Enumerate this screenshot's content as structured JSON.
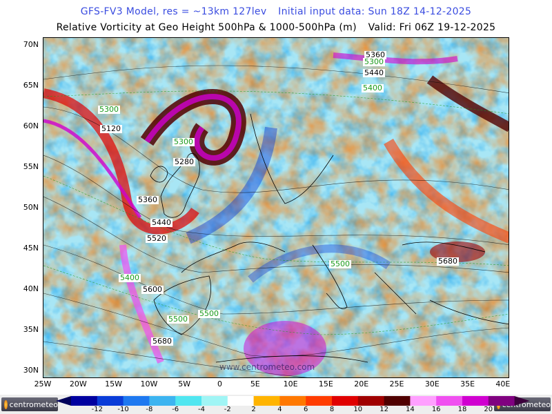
{
  "title": {
    "model": "GFS-FV3 Model, res = ~13km 127lev",
    "init": "Initial input data: Sun 18Z 14-12-2025"
  },
  "subtitle": {
    "field": "Relative Vorticity at Geo Height 500hPa & 1000-500hPa (m)",
    "valid": "Valid: Fri 06Z 19-12-2025"
  },
  "map": {
    "lat_ticks": [
      "70N",
      "65N",
      "60N",
      "55N",
      "50N",
      "45N",
      "40N",
      "35N",
      "30N"
    ],
    "lon_ticks": [
      "25W",
      "20W",
      "15W",
      "10W",
      "5W",
      "0",
      "5E",
      "10E",
      "15E",
      "20E",
      "25E",
      "30E",
      "35E",
      "40E"
    ],
    "contours": [
      {
        "label": "5360",
        "color": "#000000"
      },
      {
        "label": "5300",
        "color": "#1a9a1a"
      },
      {
        "label": "5440",
        "color": "#000000"
      },
      {
        "label": "5400",
        "color": "#1a9a1a"
      },
      {
        "label": "5300",
        "color": "#1a9a1a"
      },
      {
        "label": "5120",
        "color": "#000000"
      },
      {
        "label": "5300",
        "color": "#1a9a1a"
      },
      {
        "label": "5280",
        "color": "#000000"
      },
      {
        "label": "5360",
        "color": "#000000"
      },
      {
        "label": "5440",
        "color": "#000000"
      },
      {
        "label": "5520",
        "color": "#000000"
      },
      {
        "label": "5400",
        "color": "#1a9a1a"
      },
      {
        "label": "5600",
        "color": "#000000"
      },
      {
        "label": "5500",
        "color": "#1a9a1a"
      },
      {
        "label": "5500",
        "color": "#1a9a1a"
      },
      {
        "label": "5500",
        "color": "#1a9a1a"
      },
      {
        "label": "5680",
        "color": "#000000"
      },
      {
        "label": "5680",
        "color": "#000000"
      }
    ],
    "watermark": "www.centrometeo.com"
  },
  "colorbar": {
    "labels": [
      "-12",
      "-10",
      "-8",
      "-6",
      "-4",
      "-2",
      "2",
      "4",
      "6",
      "8",
      "10",
      "12",
      "14",
      "16",
      "18",
      "20"
    ],
    "colors": [
      "#0000a0",
      "#0a3cd8",
      "#1e78f0",
      "#3cb4f0",
      "#50e6f0",
      "#a0f5f5",
      "#ffffff",
      "#ffb400",
      "#ff7800",
      "#ff3c00",
      "#e00000",
      "#a00000",
      "#500000",
      "#ffa0ff",
      "#f050f0",
      "#d000d0",
      "#800080"
    ],
    "left_arrow_color": "#00005a",
    "right_arrow_color": "#3c003c"
  },
  "logos": {
    "left": "centrometeo",
    "right": "centrometeo"
  }
}
